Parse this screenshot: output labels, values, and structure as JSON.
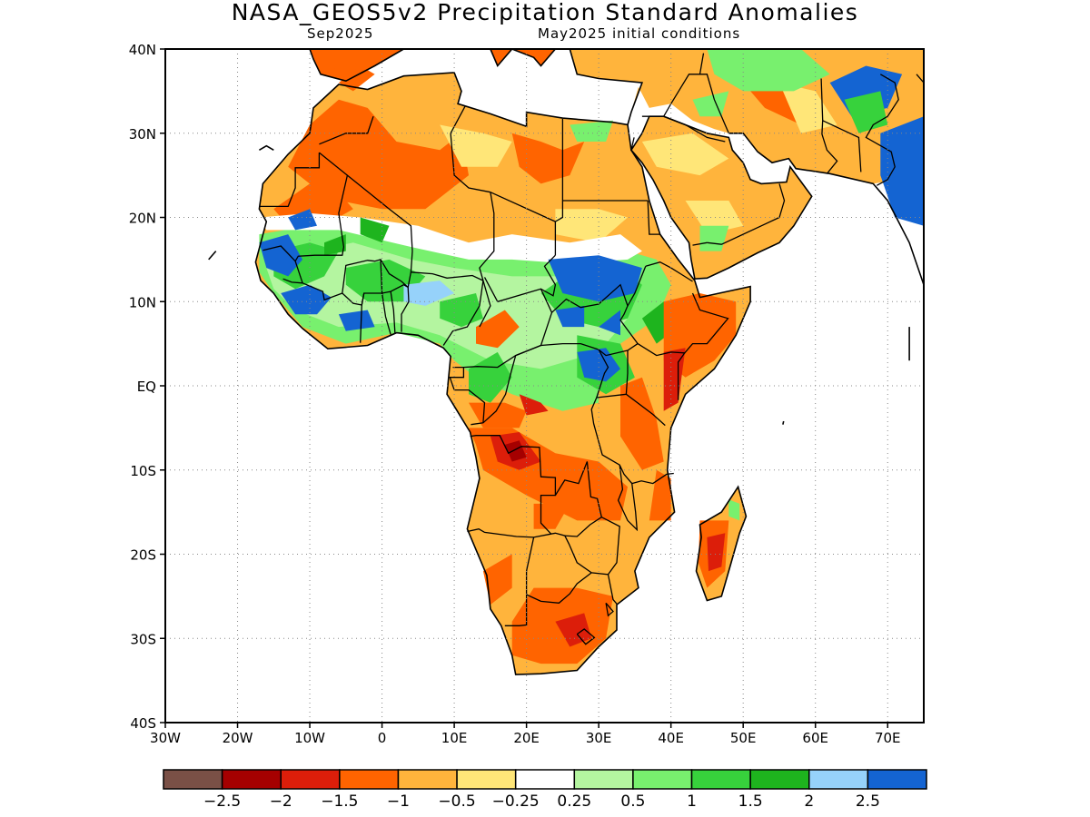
{
  "title": "NASA_GEOS5v2 Precipitation Standard Anomalies",
  "subtitle_left": "Sep2025",
  "subtitle_right": "May2025 initial conditions",
  "map": {
    "lon_range": [
      -30,
      75
    ],
    "lat_range": [
      -40,
      40
    ],
    "lon_ticks": [
      "30W",
      "20W",
      "10W",
      "0",
      "10E",
      "20E",
      "30E",
      "40E",
      "50E",
      "60E",
      "70E"
    ],
    "lat_ticks": [
      "40N",
      "30N",
      "20N",
      "10N",
      "EQ",
      "10S",
      "20S",
      "30S",
      "40S"
    ],
    "gridlines": "dotted"
  },
  "colorbar": {
    "colors": [
      "#7a5046",
      "#a50000",
      "#dc1e0a",
      "#ff6400",
      "#ffb43c",
      "#ffe678",
      "#ffffff",
      "#b4f5a0",
      "#78f06e",
      "#37d23c",
      "#1eb41e",
      "#96d2fa",
      "#1464d2"
    ],
    "labels": [
      "−2.5",
      "−2",
      "−1.5",
      "−1",
      "−0.5",
      "−0.25",
      "0.25",
      "0.5",
      "1",
      "1.5",
      "2",
      "2.5"
    ]
  }
}
